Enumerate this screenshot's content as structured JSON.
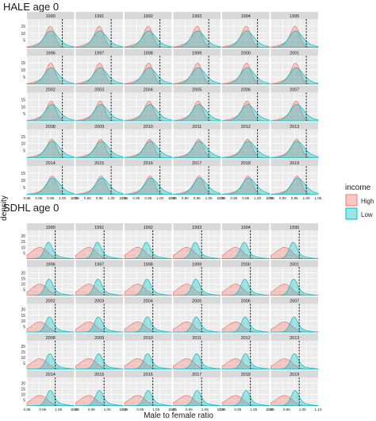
{
  "figure": {
    "ylabel": "density",
    "xlabel": "Male to female ratio",
    "legend": {
      "title": "income",
      "items": [
        {
          "label": "High",
          "color": "#F8766D"
        },
        {
          "label": "Low",
          "color": "#00BFC4"
        }
      ]
    }
  },
  "chart_data": [
    {
      "type": "area",
      "title": "HALE age 0",
      "facets": [
        "1990",
        "1991",
        "1992",
        "1993",
        "1994",
        "1995",
        "1996",
        "1997",
        "1998",
        "1999",
        "2000",
        "2001",
        "2002",
        "2003",
        "2004",
        "2005",
        "2006",
        "2007",
        "2008",
        "2009",
        "2010",
        "2011",
        "2012",
        "2013",
        "2014",
        "2015",
        "2016",
        "2017",
        "2018",
        "2019"
      ],
      "xlim": [
        0.85,
        1.05
      ],
      "ylim": [
        0,
        20
      ],
      "yticks": [
        0,
        5,
        10,
        15
      ],
      "xtick_labels": [
        "0.85",
        "0.90",
        "0.95",
        "1.00",
        "1.05"
      ],
      "reference_line_x": 1.0,
      "series": [
        {
          "name": "High",
          "shape": "peaked",
          "mode_by_row": [
            0.952,
            0.954,
            0.956,
            0.958,
            0.96
          ],
          "peak_by_row": [
            16,
            16,
            15,
            14,
            14
          ],
          "sd": 0.018
        },
        {
          "name": "Low",
          "shape": "wide",
          "mode_by_row": [
            0.95,
            0.952,
            0.955,
            0.957,
            0.959
          ],
          "peak_by_row": [
            12,
            12,
            12,
            12,
            12
          ],
          "sd": 0.026
        }
      ]
    },
    {
      "type": "area",
      "title": "SDHL age 0",
      "facets": [
        "1990",
        "1991",
        "1992",
        "1993",
        "1994",
        "1995",
        "1996",
        "1997",
        "1998",
        "1999",
        "2000",
        "2001",
        "2002",
        "2003",
        "2004",
        "2005",
        "2006",
        "2007",
        "2008",
        "2009",
        "2010",
        "2011",
        "2012",
        "2013",
        "2014",
        "2015",
        "2016",
        "2017",
        "2018",
        "2019"
      ],
      "xlim": [
        0.85,
        1.1
      ],
      "ylim": [
        0,
        25
      ],
      "yticks": [
        0,
        5,
        10,
        15,
        20
      ],
      "xtick_labels": [
        "0.85",
        "0.95",
        "1.05",
        "1.10"
      ],
      "reference_line_x": 1.0,
      "series": [
        {
          "name": "High",
          "shape": "broad-left",
          "mode_by_row": [
            0.93,
            0.93,
            0.93,
            0.93,
            0.93
          ],
          "peak_by_row": [
            11,
            11,
            10,
            10,
            10
          ],
          "sd": 0.035
        },
        {
          "name": "Low",
          "shape": "narrow",
          "mode_by_row": [
            0.965,
            0.968,
            0.97,
            0.972,
            0.975
          ],
          "peak_by_row": [
            15,
            15,
            14,
            14,
            14
          ],
          "sd": 0.02
        }
      ]
    }
  ]
}
